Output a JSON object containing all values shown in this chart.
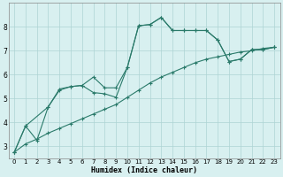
{
  "title": "",
  "xlabel": "Humidex (Indice chaleur)",
  "background_color": "#d8f0f0",
  "grid_color": "#aed4d4",
  "line_color": "#2a7a6a",
  "xlim": [
    -0.5,
    23.5
  ],
  "ylim": [
    2.5,
    9.0
  ],
  "yticks": [
    3,
    4,
    5,
    6,
    7,
    8
  ],
  "xticks": [
    0,
    1,
    2,
    3,
    4,
    5,
    6,
    7,
    8,
    9,
    10,
    11,
    12,
    13,
    14,
    15,
    16,
    17,
    18,
    19,
    20,
    21,
    22,
    23
  ],
  "line1_x": [
    0,
    1,
    2,
    3,
    4,
    5,
    6,
    7,
    8,
    9,
    10,
    11,
    12,
    13,
    14,
    15,
    16,
    17,
    18,
    19,
    20,
    21,
    22,
    23
  ],
  "line1_y": [
    2.75,
    3.85,
    3.25,
    4.65,
    5.4,
    5.5,
    5.55,
    5.25,
    5.2,
    5.05,
    6.3,
    8.05,
    8.1,
    8.4,
    7.85,
    7.85,
    7.85,
    7.85,
    7.45,
    6.55,
    6.65,
    7.05,
    7.05,
    7.15
  ],
  "line2_x": [
    0,
    1,
    3,
    4,
    5,
    6,
    7,
    8,
    9,
    10,
    11,
    12,
    13,
    14,
    15,
    16,
    17,
    18,
    19,
    20,
    21,
    22,
    23
  ],
  "line2_y": [
    2.75,
    3.85,
    4.65,
    5.35,
    5.5,
    5.55,
    5.9,
    5.45,
    5.45,
    6.3,
    8.05,
    8.1,
    8.4,
    7.85,
    7.85,
    7.85,
    7.85,
    7.45,
    6.55,
    6.65,
    7.05,
    7.05,
    7.15
  ],
  "line3_x": [
    0,
    1,
    2,
    3,
    4,
    5,
    6,
    7,
    8,
    9,
    10,
    11,
    12,
    13,
    14,
    15,
    16,
    17,
    18,
    19,
    20,
    21,
    22,
    23
  ],
  "line3_y": [
    2.75,
    3.1,
    3.3,
    3.55,
    3.75,
    3.95,
    4.15,
    4.35,
    4.55,
    4.75,
    5.05,
    5.35,
    5.65,
    5.9,
    6.1,
    6.3,
    6.5,
    6.65,
    6.75,
    6.85,
    6.95,
    7.0,
    7.1,
    7.15
  ],
  "tick_fontsize": 5.0,
  "xlabel_fontsize": 6.0
}
